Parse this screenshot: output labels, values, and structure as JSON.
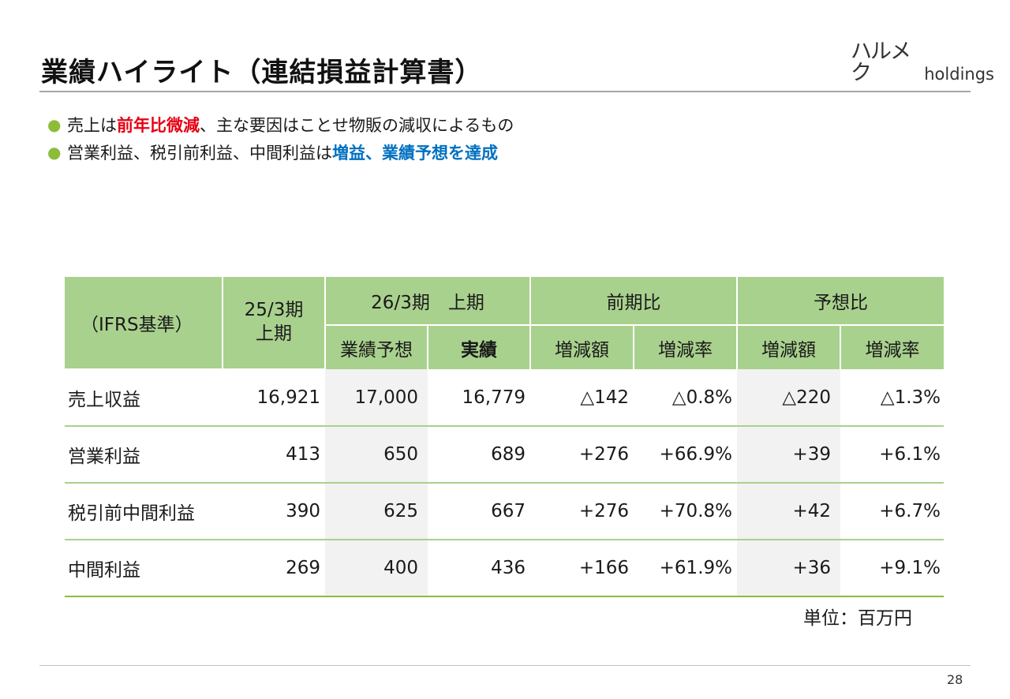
{
  "header": {
    "title": "業績ハイライト（連結損益計算書）",
    "logo_kana": "ハルメク",
    "logo_en": "holdings"
  },
  "bullets": [
    {
      "pre": "売上は",
      "em": "前年比微減",
      "post": "、主な要因はことせ物販の減収によるもの"
    },
    {
      "pre": "営業利益、税引前利益、中間利益は",
      "em": "増益、業績予想を達成",
      "post": ""
    }
  ],
  "table": {
    "corner": "（IFRS基準）",
    "col_prev": "25/3期\n上期",
    "group_current": "26/3期　上期",
    "group_yoy": "前期比",
    "group_vs_forecast": "予想比",
    "sub_forecast": "業績予想",
    "sub_actual": "実績",
    "sub_diff": "増減額",
    "sub_rate": "増減率",
    "rows": [
      {
        "label": "売上収益",
        "prev": "16,921",
        "forecast": "17,000",
        "actual": "16,779",
        "yoy_diff": "△142",
        "yoy_rate": "△0.8%",
        "fc_diff": "△220",
        "fc_rate": "△1.3%"
      },
      {
        "label": "営業利益",
        "prev": "413",
        "forecast": "650",
        "actual": "689",
        "yoy_diff": "+276",
        "yoy_rate": "+66.9%",
        "fc_diff": "+39",
        "fc_rate": "+6.1%"
      },
      {
        "label": "税引前中間利益",
        "prev": "390",
        "forecast": "625",
        "actual": "667",
        "yoy_diff": "+276",
        "yoy_rate": "+70.8%",
        "fc_diff": "+42",
        "fc_rate": "+6.7%"
      },
      {
        "label": "中間利益",
        "prev": "269",
        "forecast": "400",
        "actual": "436",
        "yoy_diff": "+166",
        "yoy_rate": "+61.9%",
        "fc_diff": "+36",
        "fc_rate": "+9.1%"
      }
    ]
  },
  "unit": "単位：百万円",
  "page_number": "28",
  "colors": {
    "header_green": "#a9d18e",
    "bullet_green": "#8cbd3a",
    "emphasis_red": "#e60012",
    "emphasis_blue": "#0070c0",
    "cell_shade": "#f2f2f2"
  }
}
